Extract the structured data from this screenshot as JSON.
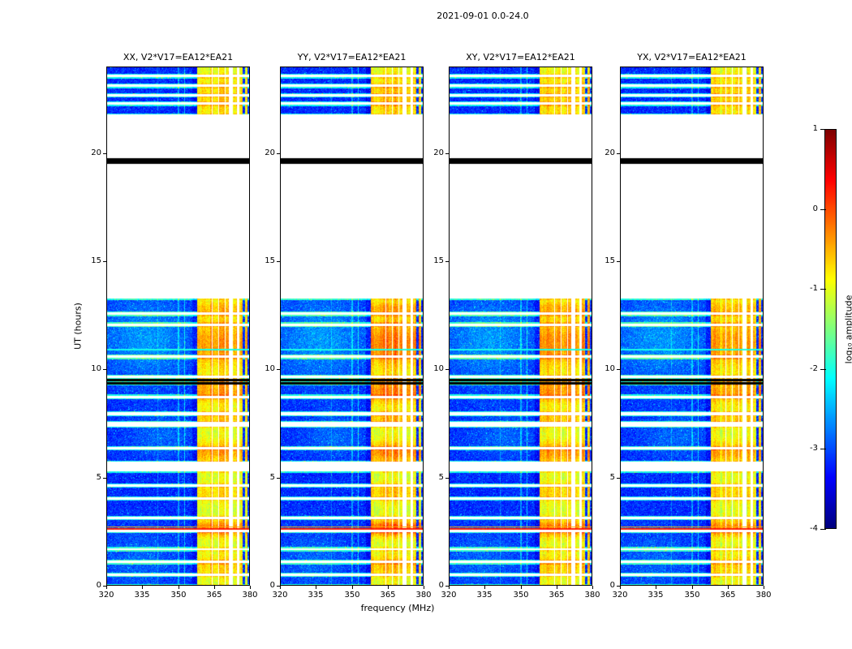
{
  "chart_data": {
    "type": "heatmap",
    "title": "2021-09-01 0.0-24.0",
    "xlabel": "frequency (MHz)",
    "ylabel": "UT (hours)",
    "colorbar_label": "log₁₀ amplitude",
    "x_range": [
      320,
      380
    ],
    "y_range": [
      0,
      24
    ],
    "x_ticks": [
      320,
      335,
      350,
      365,
      380
    ],
    "y_ticks": [
      0,
      5,
      10,
      15,
      20
    ],
    "colorbar": {
      "range": [
        -4,
        1
      ],
      "ticks": [
        1,
        0,
        -1,
        -2,
        -3,
        -4
      ]
    },
    "colormap": "jet",
    "panels": [
      {
        "label": "XX, V2*V17=EA12*EA21",
        "band_gain": 1.0,
        "seed": 101
      },
      {
        "label": "YY, V2*V17=EA12*EA21",
        "band_gain": 1.25,
        "seed": 202
      },
      {
        "label": "XY, V2*V17=EA12*EA21",
        "band_gain": 1.05,
        "seed": 303
      },
      {
        "label": "YX, V2*V17=EA12*EA21",
        "band_gain": 0.9,
        "seed": 404
      }
    ],
    "time_segments": [
      [
        0,
        13.27
      ],
      [
        21.82,
        24.05
      ]
    ],
    "white_stripes": [
      [
        0.42,
        0.53
      ],
      [
        1.0,
        1.12
      ],
      [
        1.6,
        1.71
      ],
      [
        2.44,
        2.54
      ],
      [
        3.05,
        3.16
      ],
      [
        3.95,
        4.06
      ],
      [
        4.55,
        4.67
      ],
      [
        5.25,
        5.72
      ],
      [
        6.28,
        6.4
      ],
      [
        7.33,
        7.55
      ],
      [
        7.88,
        8.0
      ],
      [
        8.66,
        8.78
      ],
      [
        9.58,
        9.7
      ],
      [
        10.52,
        10.64
      ],
      [
        12.0,
        12.12
      ],
      [
        12.52,
        12.64
      ],
      [
        22.26,
        22.38
      ],
      [
        22.64,
        22.76
      ],
      [
        23.09,
        23.2
      ],
      [
        23.54,
        23.65
      ]
    ],
    "black_bars": [
      [
        19.53,
        19.8
      ],
      [
        9.31,
        9.4
      ],
      [
        9.46,
        9.54
      ]
    ],
    "h_lines": [
      {
        "t0": 2.56,
        "t1": 2.64,
        "v": 0.2
      },
      {
        "t0": 2.66,
        "t1": 2.71,
        "v": -0.5
      },
      {
        "t0": 10.87,
        "t1": 10.94,
        "v": -2.0
      }
    ],
    "rfi": {
      "band": [
        358.2,
        371.5
      ],
      "band_white_gaps": [
        [
          364.2,
          364.7
        ],
        [
          366.9,
          367.4
        ],
        [
          369.6,
          370.1
        ]
      ],
      "outer_white": [
        [
          371.5,
          373.2
        ],
        [
          374.9,
          375.9
        ]
      ],
      "outer_stripes": [
        [
          373.2,
          374.9
        ],
        [
          375.9,
          377.3
        ],
        [
          378.3,
          379.3
        ]
      ],
      "faint_columns": [
        {
          "f0": 350.0,
          "f1": 350.45,
          "a": 0.55
        },
        {
          "f0": 352.6,
          "f1": 353.05,
          "a": 0.75
        },
        {
          "f0": 341.3,
          "f1": 341.6,
          "a": 0.35
        },
        {
          "f0": 356.0,
          "f1": 358.0,
          "a": -0.25
        }
      ],
      "blob_times": [
        {
          "c": 2.62,
          "w": 0.38,
          "a": 0.95
        },
        {
          "c": 0.9,
          "w": 0.55,
          "a": 0.45
        },
        {
          "c": 4.3,
          "w": 0.45,
          "a": 0.4
        },
        {
          "c": 6.15,
          "w": 0.5,
          "a": 0.7
        },
        {
          "c": 7.7,
          "w": 0.4,
          "a": 0.45
        },
        {
          "c": 8.95,
          "w": 0.55,
          "a": 0.7
        },
        {
          "c": 11.2,
          "w": 1.2,
          "a": 0.75
        },
        {
          "c": 12.85,
          "w": 0.35,
          "a": 0.45
        },
        {
          "c": 22.6,
          "w": 1.1,
          "a": 0.4
        }
      ]
    },
    "bg_patches": [
      {
        "tc": 11.4,
        "tw": 2.0,
        "fc": 337,
        "fw": 20,
        "a": 0.55
      },
      {
        "tc": 1.2,
        "tw": 1.4,
        "fc": 334,
        "fw": 16,
        "a": 0.3
      },
      {
        "tc": 6.9,
        "tw": 1.1,
        "fc": 343,
        "fw": 14,
        "a": 0.3
      }
    ]
  }
}
